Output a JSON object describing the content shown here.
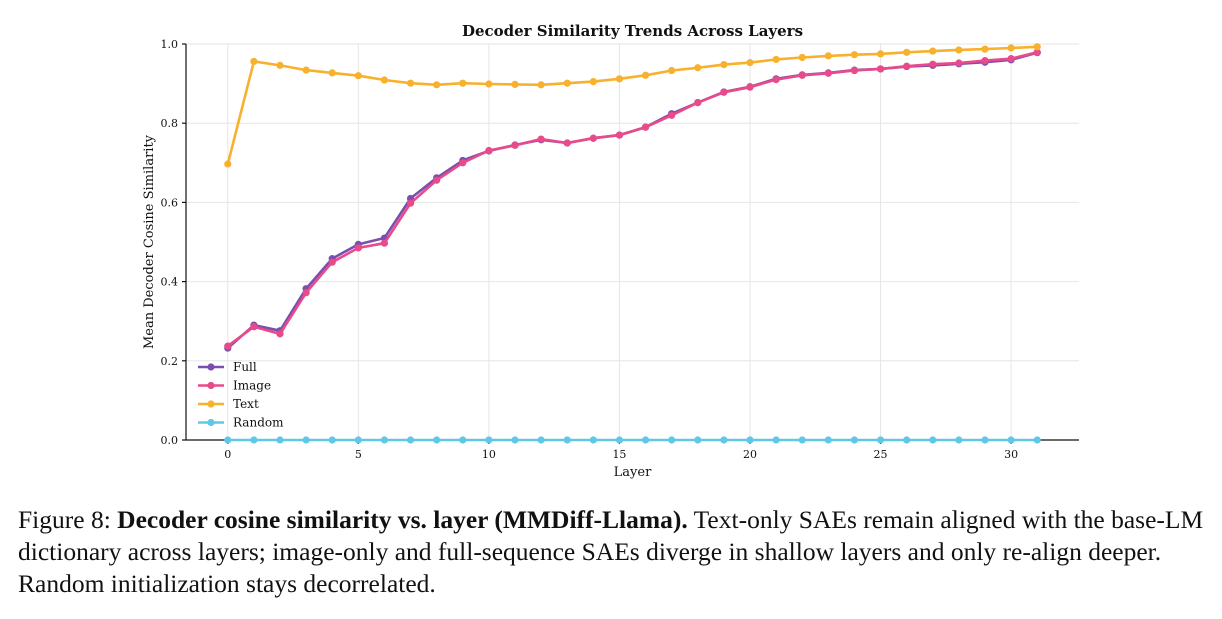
{
  "chart_data": {
    "type": "line",
    "title": "Decoder Similarity Trends Across Layers",
    "xlabel": "Layer",
    "ylabel": "Mean Decoder Cosine Similarity",
    "xlim": [
      -1.6,
      32.6
    ],
    "ylim": [
      0.0,
      1.0
    ],
    "xticks": [
      0,
      5,
      10,
      15,
      20,
      25,
      30
    ],
    "yticks": [
      0.0,
      0.2,
      0.4,
      0.6,
      0.8,
      1.0
    ],
    "grid": true,
    "legend_position": "lower-left",
    "x": [
      0,
      1,
      2,
      3,
      4,
      5,
      6,
      7,
      8,
      9,
      10,
      11,
      12,
      13,
      14,
      15,
      16,
      17,
      18,
      19,
      20,
      21,
      22,
      23,
      24,
      25,
      26,
      27,
      28,
      29,
      30,
      31
    ],
    "series": [
      {
        "name": "Full",
        "color": "#7b4fae",
        "values": [
          0.232,
          0.29,
          0.276,
          0.382,
          0.458,
          0.494,
          0.51,
          0.61,
          0.662,
          0.706,
          0.73,
          0.745,
          0.758,
          0.75,
          0.762,
          0.77,
          0.79,
          0.824,
          0.852,
          0.879,
          0.892,
          0.912,
          0.922,
          0.927,
          0.934,
          0.937,
          0.943,
          0.946,
          0.95,
          0.954,
          0.96,
          0.978
        ]
      },
      {
        "name": "Image",
        "color": "#e84a8a",
        "values": [
          0.237,
          0.286,
          0.268,
          0.372,
          0.449,
          0.485,
          0.497,
          0.598,
          0.656,
          0.7,
          0.731,
          0.744,
          0.76,
          0.75,
          0.762,
          0.77,
          0.79,
          0.82,
          0.852,
          0.878,
          0.891,
          0.91,
          0.921,
          0.926,
          0.933,
          0.937,
          0.944,
          0.949,
          0.952,
          0.958,
          0.963,
          0.979
        ]
      },
      {
        "name": "Text",
        "color": "#f8b12c",
        "values": [
          0.697,
          0.956,
          0.946,
          0.934,
          0.927,
          0.92,
          0.909,
          0.901,
          0.897,
          0.901,
          0.899,
          0.898,
          0.897,
          0.901,
          0.905,
          0.912,
          0.921,
          0.933,
          0.94,
          0.948,
          0.953,
          0.961,
          0.966,
          0.97,
          0.973,
          0.975,
          0.979,
          0.982,
          0.985,
          0.987,
          0.99,
          0.993
        ]
      },
      {
        "name": "Random",
        "color": "#5ec8e5",
        "values": [
          0.0,
          0.0,
          0.0,
          0.0,
          0.0,
          0.0,
          0.0,
          0.0,
          0.0,
          0.0,
          0.0,
          0.0,
          0.0,
          0.0,
          0.0,
          0.0,
          0.0,
          0.0,
          0.0,
          0.0,
          0.0,
          0.0,
          0.0,
          0.0,
          0.0,
          0.0,
          0.0,
          0.0,
          0.0,
          0.0,
          0.0,
          0.0
        ]
      }
    ]
  },
  "caption": {
    "prefix": "Figure 8: ",
    "bold": "Decoder cosine similarity vs. layer (MMDiff-Llama).",
    "body": " Text-only SAEs remain aligned with the base-LM dictionary across layers; image-only and full-sequence SAEs diverge in shallow layers and only re-align deeper. Random initialization stays decorrelated."
  }
}
